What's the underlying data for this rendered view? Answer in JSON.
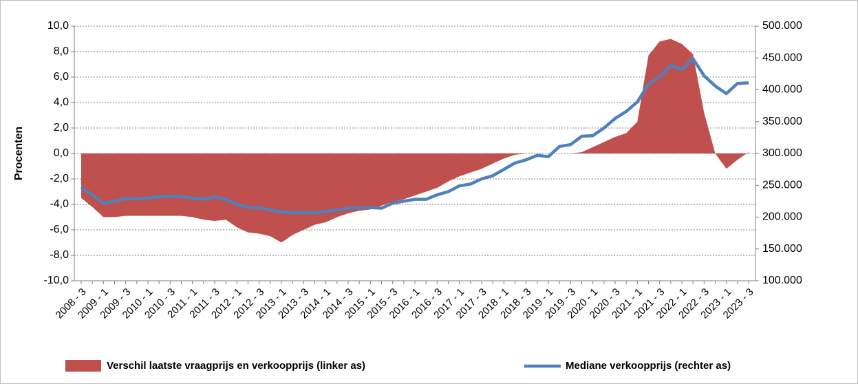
{
  "chart_data": {
    "type": "combo",
    "y_label": "Procenten",
    "categories": [
      "2008 - 3",
      null,
      "2009 - 1",
      null,
      "2009 - 3",
      null,
      "2010 - 1",
      null,
      "2010 - 3",
      null,
      "2011 - 1",
      null,
      "2011 - 3",
      null,
      "2012 - 1",
      null,
      "2012 - 3",
      null,
      "2013 - 1",
      null,
      "2013 - 3",
      null,
      "2014 - 1",
      null,
      "2014 - 3",
      null,
      "2015 - 1",
      null,
      "2015 - 3",
      null,
      "2016 - 1",
      null,
      "2016 - 3",
      null,
      "2017 - 1",
      null,
      "2017 - 3",
      null,
      "2018 - 1",
      null,
      "2018 - 3",
      null,
      "2019 - 1",
      null,
      "2019 - 3",
      null,
      "2020 - 1",
      null,
      "2020 - 3",
      null,
      "2021 - 1",
      null,
      "2021 - 3",
      null,
      "2022 - 1",
      null,
      "2022 - 3",
      null,
      "2023 - 1",
      null,
      "2023 - 3"
    ],
    "series": [
      {
        "name": "Verschil laatste vraagprijs en verkoopprijs (linker as)",
        "type": "area",
        "axis": "y",
        "color": "#c0504d",
        "values": [
          -3.5,
          -4.2,
          -5.0,
          -5.0,
          -4.9,
          -4.9,
          -4.9,
          -4.9,
          -4.9,
          -4.9,
          -5.0,
          -5.2,
          -5.3,
          -5.2,
          -5.8,
          -6.2,
          -6.3,
          -6.5,
          -7.0,
          -6.4,
          -6.0,
          -5.6,
          -5.4,
          -5.0,
          -4.7,
          -4.5,
          -4.4,
          -4.1,
          -3.8,
          -3.6,
          -3.3,
          -3.0,
          -2.7,
          -2.2,
          -1.8,
          -1.5,
          -1.2,
          -0.8,
          -0.4,
          -0.1,
          0.0,
          0.0,
          0.0,
          0.0,
          0.0,
          0.1,
          0.5,
          0.9,
          1.3,
          1.6,
          2.5,
          7.7,
          8.8,
          9.0,
          8.6,
          7.8,
          3.2,
          0.0,
          -1.2,
          -0.5,
          0.1
        ]
      },
      {
        "name": "Mediane verkoopprijs (rechter as)",
        "type": "line",
        "axis": "y2",
        "color": "#4f81bd",
        "values": [
          247000,
          235000,
          222000,
          225000,
          229000,
          229000,
          230000,
          232000,
          233000,
          232000,
          230000,
          228000,
          232000,
          228000,
          220000,
          215000,
          215000,
          211000,
          208000,
          207000,
          207000,
          207000,
          209000,
          211000,
          214000,
          215000,
          215000,
          214000,
          222000,
          225000,
          228000,
          228000,
          235000,
          240000,
          249000,
          252000,
          260000,
          265000,
          275000,
          285000,
          290000,
          297000,
          295000,
          311000,
          314000,
          327000,
          328000,
          340000,
          355000,
          366000,
          381000,
          409000,
          420000,
          438000,
          432000,
          449000,
          422000,
          406000,
          394000,
          410000,
          411000
        ]
      }
    ],
    "ylim": [
      -10,
      10
    ],
    "yticks": [
      {
        "value": -10,
        "label": "-10,0"
      },
      {
        "value": -8,
        "label": "-8,0"
      },
      {
        "value": -6,
        "label": "-6,0"
      },
      {
        "value": -4,
        "label": "-4,0"
      },
      {
        "value": -2,
        "label": "-2,0"
      },
      {
        "value": 0,
        "label": "0,0"
      },
      {
        "value": 2,
        "label": "2,0"
      },
      {
        "value": 4,
        "label": "4,0"
      },
      {
        "value": 6,
        "label": "6,0"
      },
      {
        "value": 8,
        "label": "8,0"
      },
      {
        "value": 10,
        "label": "10,0"
      }
    ],
    "y2lim": [
      100000,
      500000
    ],
    "y2ticks": [
      {
        "value": 100000,
        "label": "100.000"
      },
      {
        "value": 150000,
        "label": "150.000"
      },
      {
        "value": 200000,
        "label": "200.000"
      },
      {
        "value": 250000,
        "label": "250.000"
      },
      {
        "value": 300000,
        "label": "300.000"
      },
      {
        "value": 350000,
        "label": "350.000"
      },
      {
        "value": 400000,
        "label": "400.000"
      },
      {
        "value": 450000,
        "label": "450.000"
      },
      {
        "value": 500000,
        "label": "500.000"
      }
    ],
    "grid": true,
    "legend": "bottom"
  }
}
